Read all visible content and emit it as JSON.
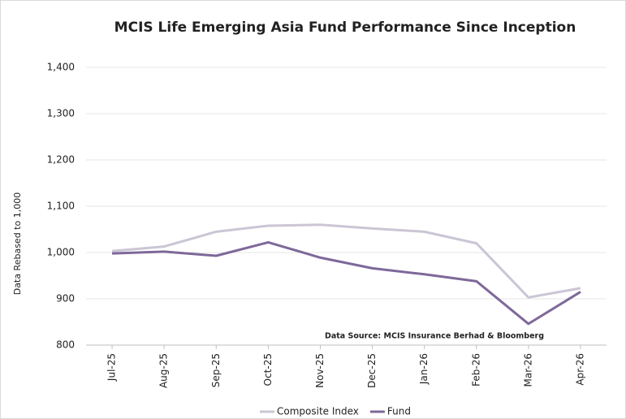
{
  "chart_data": {
    "type": "line",
    "title": "MCIS Life Emerging Asia Fund Performance Since Inception",
    "y_label": "Data Rebased to 1,000",
    "annotation": "Data Source: MCIS Insurance Berhad & Bloomberg",
    "categories": [
      "Jul-25",
      "Aug-25",
      "Sep-25",
      "Oct-25",
      "Nov-25",
      "Dec-25",
      "Jan-26",
      "Feb-26",
      "Mar-26",
      "Apr-26"
    ],
    "series": [
      {
        "name": "Composite Index",
        "color": "#cbc5d5",
        "values": [
          1003,
          1013,
          1045,
          1058,
          1060,
          1052,
          1045,
          1020,
          903,
          923
        ]
      },
      {
        "name": "Fund",
        "color": "#7e6899",
        "values": [
          998,
          1002,
          993,
          1022,
          989,
          966,
          953,
          938,
          846,
          915
        ]
      }
    ],
    "ylim": [
      800,
      1400
    ],
    "yticks": [
      800,
      900,
      {
        "value": 1000,
        "label": "1,000"
      },
      {
        "value": 1100,
        "label": "1,100"
      },
      {
        "value": 1200,
        "label": "1,200"
      },
      {
        "value": 1300,
        "label": "1,300"
      },
      {
        "value": 1400,
        "label": "1,400"
      }
    ],
    "grid": true,
    "legend": "bottom"
  }
}
